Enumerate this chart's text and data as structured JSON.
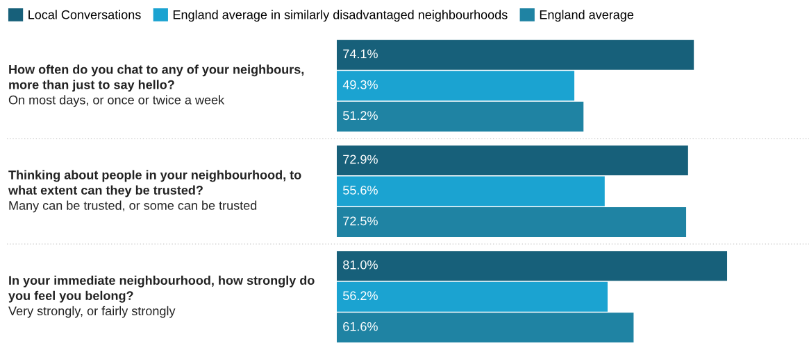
{
  "chart_data": {
    "type": "bar",
    "orientation": "horizontal",
    "legend": "top",
    "data_labels": true,
    "tick_labels": false,
    "xlim": [
      0,
      98
    ],
    "categories": [
      "How often do you chat to any of your neighbours,\nmore than just to say hello?\nOn most days, or once or twice a week",
      "Thinking about people in your neighbourhood, to\nwhat extent can they be trusted?\nMany can be trusted, or some can be trusted",
      "In your immediate neighbourhood, how strongly do\nyou feel you belong?\nVery strongly, or fairly strongly"
    ],
    "series": [
      {
        "name": "Local Conversations",
        "color": "#17607a",
        "values": [
          74.1,
          72.9,
          81.0
        ],
        "value_labels": [
          "74.1%",
          "72.9%",
          "81.0%"
        ]
      },
      {
        "name": "England average in similarly disadvantaged neighbourhoods",
        "color": "#1ba3d1",
        "values": [
          49.3,
          55.6,
          56.2
        ],
        "value_labels": [
          "49.3%",
          "55.6%",
          "56.2%"
        ]
      },
      {
        "name": "England average",
        "color": "#1f83a3",
        "values": [
          51.2,
          72.5,
          61.6
        ],
        "value_labels": [
          "51.2%",
          "72.5%",
          "61.6%"
        ]
      }
    ]
  }
}
